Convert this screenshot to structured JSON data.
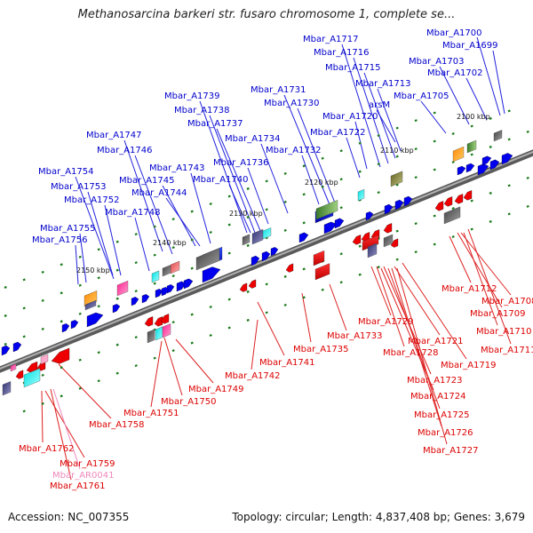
{
  "title": "Methanosarcina barkeri str. fusaro chromosome 1, complete se...",
  "footer": {
    "accession": "Accession: NC_007355",
    "info": "Topology: circular; Length: 4,837,408 bp; Genes: 3,679"
  },
  "colors": {
    "forward": "#0000cc",
    "reverse": "#dd0000",
    "rna": "#ee88bb",
    "backbone": "#8a8a8a"
  },
  "kbp_labels": [
    "2100 kbp",
    "2110 kbp",
    "2120 kbp",
    "2130 kbp",
    "2140 kbp",
    "2150 kbp"
  ],
  "top_labels": [
    "Mbar_A1700",
    "Mbar_A1699",
    "Mbar_A1717",
    "Mbar_A1716",
    "Mbar_A1703",
    "Mbar_A1715",
    "Mbar_A1702",
    "Mbar_A1713",
    "Mbar_A1731",
    "Mbar_A1705",
    "Mbar_A1739",
    "arsM",
    "Mbar_A1730",
    "Mbar_A1738",
    "Mbar_A1720",
    "Mbar_A1737",
    "Mbar_A1722",
    "Mbar_A1747",
    "Mbar_A1734",
    "Mbar_A1746",
    "Mbar_A1732",
    "Mbar_A1736",
    "Mbar_A1743",
    "Mbar_A1754",
    "Mbar_A1745",
    "Mbar_A1740",
    "Mbar_A1753",
    "Mbar_A1744",
    "Mbar_A1752",
    "Mbar_A1748",
    "Mbar_A1755",
    "Mbar_A1756"
  ],
  "bottom_labels": [
    "Mbar_A1712",
    "Mbar_A1708",
    "Mbar_A1709",
    "Mbar_A1729",
    "Mbar_A1710",
    "Mbar_A1733",
    "Mbar_A1721",
    "Mbar_A1711",
    "Mbar_A1735",
    "Mbar_A1728",
    "Mbar_A1741",
    "Mbar_A1719",
    "Mbar_A1742",
    "Mbar_A1723",
    "Mbar_A1749",
    "Mbar_A1724",
    "Mbar_A1750",
    "Mbar_A1751",
    "Mbar_A1725",
    "Mbar_A1758",
    "Mbar_A1726",
    "Mbar_A1762",
    "Mbar_A1727",
    "Mbar_A1759",
    "Mbar_AR0041",
    "Mbar_A1761"
  ]
}
